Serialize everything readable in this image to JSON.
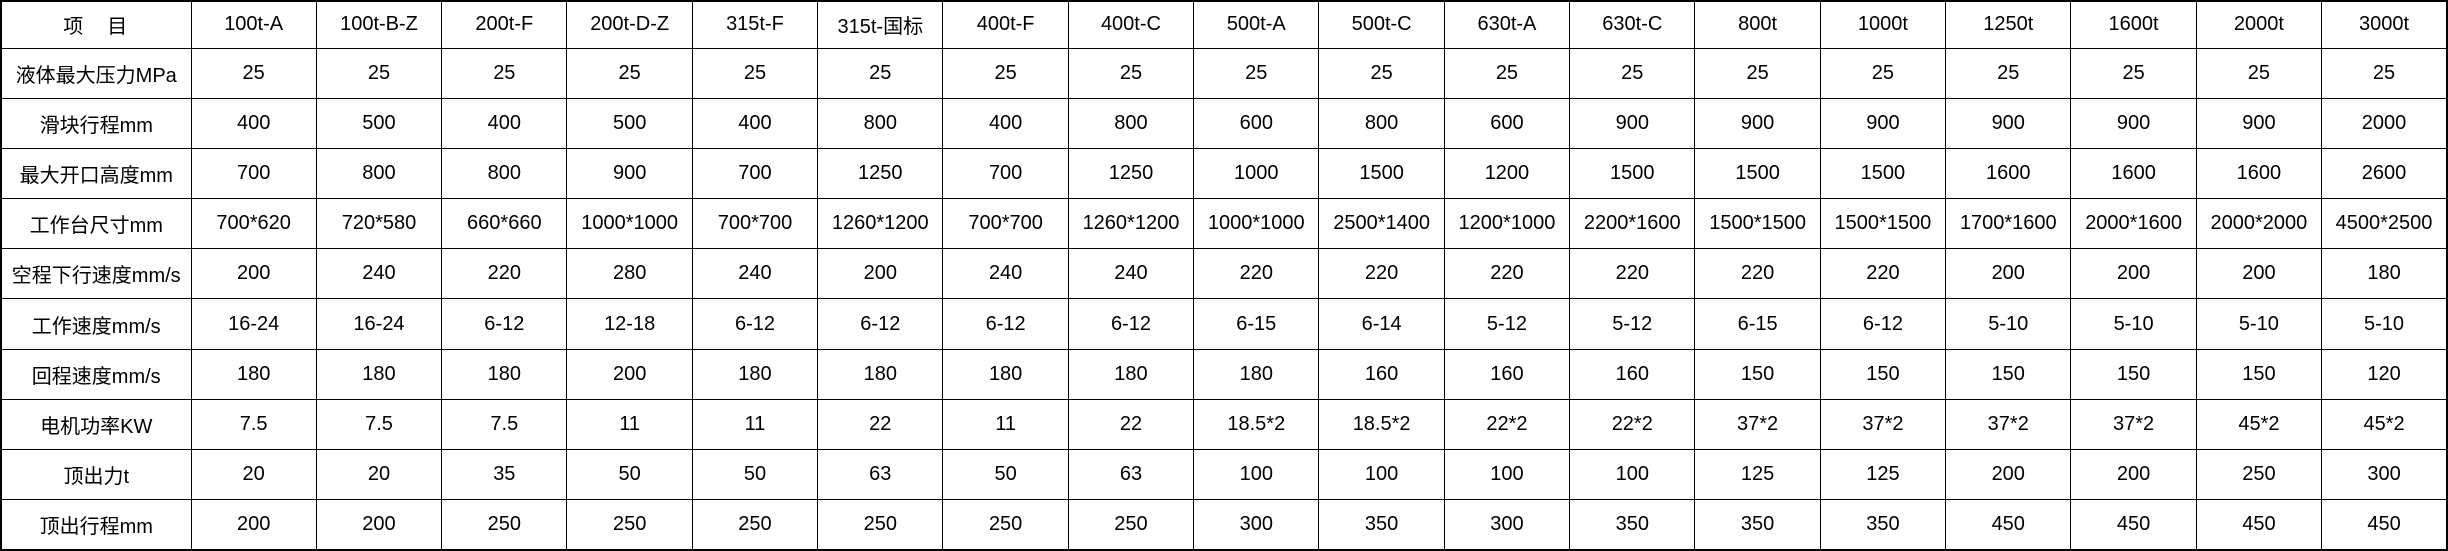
{
  "table": {
    "header": {
      "item_label": "项　目",
      "columns": [
        "100t-A",
        "100t-B-Z",
        "200t-F",
        "200t-D-Z",
        "315t-F",
        "315t-国标",
        "400t-F",
        "400t-C",
        "500t-A",
        "500t-C",
        "630t-A",
        "630t-C",
        "800t",
        "1000t",
        "1250t",
        "1600t",
        "2000t",
        "3000t"
      ]
    },
    "rows": [
      {
        "label": "液体最大压力MPa",
        "values": [
          "25",
          "25",
          "25",
          "25",
          "25",
          "25",
          "25",
          "25",
          "25",
          "25",
          "25",
          "25",
          "25",
          "25",
          "25",
          "25",
          "25",
          "25"
        ]
      },
      {
        "label": "滑块行程mm",
        "values": [
          "400",
          "500",
          "400",
          "500",
          "400",
          "800",
          "400",
          "800",
          "600",
          "800",
          "600",
          "900",
          "900",
          "900",
          "900",
          "900",
          "900",
          "2000"
        ]
      },
      {
        "label": "最大开口高度mm",
        "values": [
          "700",
          "800",
          "800",
          "900",
          "700",
          "1250",
          "700",
          "1250",
          "1000",
          "1500",
          "1200",
          "1500",
          "1500",
          "1500",
          "1600",
          "1600",
          "1600",
          "2600"
        ]
      },
      {
        "label": "工作台尺寸mm",
        "values": [
          "700*620",
          "720*580",
          "660*660",
          "1000*1000",
          "700*700",
          "1260*1200",
          "700*700",
          "1260*1200",
          "1000*1000",
          "2500*1400",
          "1200*1000",
          "2200*1600",
          "1500*1500",
          "1500*1500",
          "1700*1600",
          "2000*1600",
          "2000*2000",
          "4500*2500"
        ]
      },
      {
        "label": "空程下行速度mm/s",
        "values": [
          "200",
          "240",
          "220",
          "280",
          "240",
          "200",
          "240",
          "240",
          "220",
          "220",
          "220",
          "220",
          "220",
          "220",
          "200",
          "200",
          "200",
          "180"
        ]
      },
      {
        "label": "工作速度mm/s",
        "values": [
          "16-24",
          "16-24",
          "6-12",
          "12-18",
          "6-12",
          "6-12",
          "6-12",
          "6-12",
          "6-15",
          "6-14",
          "5-12",
          "5-12",
          "6-15",
          "6-12",
          "5-10",
          "5-10",
          "5-10",
          "5-10"
        ]
      },
      {
        "label": "回程速度mm/s",
        "values": [
          "180",
          "180",
          "180",
          "200",
          "180",
          "180",
          "180",
          "180",
          "180",
          "160",
          "160",
          "160",
          "150",
          "150",
          "150",
          "150",
          "150",
          "120"
        ]
      },
      {
        "label": "电机功率KW",
        "values": [
          "7.5",
          "7.5",
          "7.5",
          "11",
          "11",
          "22",
          "11",
          "22",
          "18.5*2",
          "18.5*2",
          "22*2",
          "22*2",
          "37*2",
          "37*2",
          "37*2",
          "37*2",
          "45*2",
          "45*2"
        ]
      },
      {
        "label": "顶出力t",
        "values": [
          "20",
          "20",
          "35",
          "50",
          "50",
          "63",
          "50",
          "63",
          "100",
          "100",
          "100",
          "100",
          "125",
          "125",
          "200",
          "200",
          "250",
          "300"
        ]
      },
      {
        "label": "顶出行程mm",
        "values": [
          "200",
          "200",
          "250",
          "250",
          "250",
          "250",
          "250",
          "250",
          "300",
          "350",
          "300",
          "350",
          "350",
          "350",
          "450",
          "450",
          "450",
          "450"
        ]
      }
    ]
  }
}
